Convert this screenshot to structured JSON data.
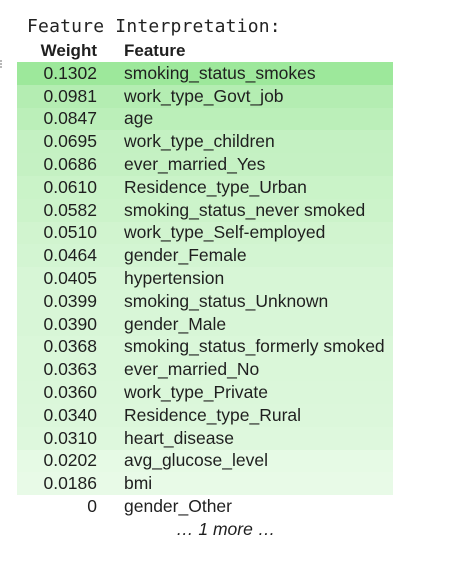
{
  "title": "Feature Interpretation:",
  "columns": {
    "weight": "Weight",
    "feature": "Feature"
  },
  "rows": [
    {
      "weight": "0.1302",
      "feature": "smoking_status_smokes",
      "color": "#9de89b"
    },
    {
      "weight": "0.0981",
      "feature": "work_type_Govt_job",
      "color": "#b4edb2"
    },
    {
      "weight": "0.0847",
      "feature": "age",
      "color": "#bbefb9"
    },
    {
      "weight": "0.0695",
      "feature": "work_type_children",
      "color": "#c4f1c2"
    },
    {
      "weight": "0.0686",
      "feature": "ever_married_Yes",
      "color": "#c5f1c3"
    },
    {
      "weight": "0.0610",
      "feature": "Residence_type_Urban",
      "color": "#caf3c8"
    },
    {
      "weight": "0.0582",
      "feature": "smoking_status_never smoked",
      "color": "#ccf3ca"
    },
    {
      "weight": "0.0510",
      "feature": "work_type_Self-employed",
      "color": "#d1f4cf"
    },
    {
      "weight": "0.0464",
      "feature": "gender_Female",
      "color": "#d3f5d2"
    },
    {
      "weight": "0.0405",
      "feature": "hypertension",
      "color": "#d7f6d6"
    },
    {
      "weight": "0.0399",
      "feature": "smoking_status_Unknown",
      "color": "#d8f6d7"
    },
    {
      "weight": "0.0390",
      "feature": "gender_Male",
      "color": "#d8f6d7"
    },
    {
      "weight": "0.0368",
      "feature": "smoking_status_formerly smoked",
      "color": "#daf7d9"
    },
    {
      "weight": "0.0363",
      "feature": "ever_married_No",
      "color": "#daf7d9"
    },
    {
      "weight": "0.0360",
      "feature": "work_type_Private",
      "color": "#dbf7da"
    },
    {
      "weight": "0.0340",
      "feature": "Residence_type_Rural",
      "color": "#dcf7db"
    },
    {
      "weight": "0.0310",
      "feature": "heart_disease",
      "color": "#def8dd"
    },
    {
      "weight": "0.0202",
      "feature": "avg_glucose_level",
      "color": "#e6fae5"
    },
    {
      "weight": "0.0186",
      "feature": "bmi",
      "color": "#e8fae7"
    },
    {
      "weight": "0",
      "feature": "gender_Other",
      "color": "#ffffff"
    }
  ],
  "more_label": "… 1 more …"
}
